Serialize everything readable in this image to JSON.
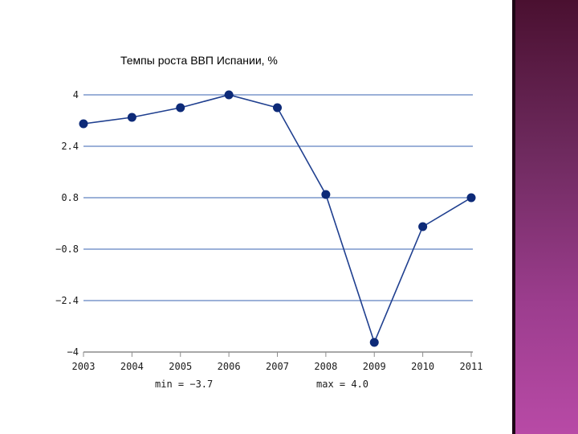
{
  "chart_data": {
    "type": "line",
    "title": "Темпы роста ВВП Испании, %",
    "xlabel": "",
    "ylabel": "",
    "categories": [
      "2003",
      "2004",
      "2005",
      "2006",
      "2007",
      "2008",
      "2009",
      "2010",
      "2011"
    ],
    "series": [
      {
        "values": [
          3.1,
          3.3,
          3.6,
          4.0,
          3.6,
          0.9,
          -3.7,
          -0.1,
          0.8
        ]
      }
    ],
    "ylim": [
      -4,
      4
    ],
    "yticks": [
      4,
      2.4,
      0.8,
      -0.8,
      -2.4,
      -4
    ],
    "ytick_labels": [
      "4",
      "2.4",
      "0.8",
      "−0.8",
      "−2.4",
      "−4"
    ],
    "grid": true,
    "legend": "none",
    "annotations": {
      "min_label": "min = −3.7",
      "max_label": "max = 4.0"
    },
    "colors": {
      "line": "#1f3f8f",
      "marker": "#0d2a78",
      "grid": "#3a63b0",
      "axis": "#8c8c8c"
    }
  },
  "decor": {
    "side_band_color": "#8a3a7e"
  }
}
